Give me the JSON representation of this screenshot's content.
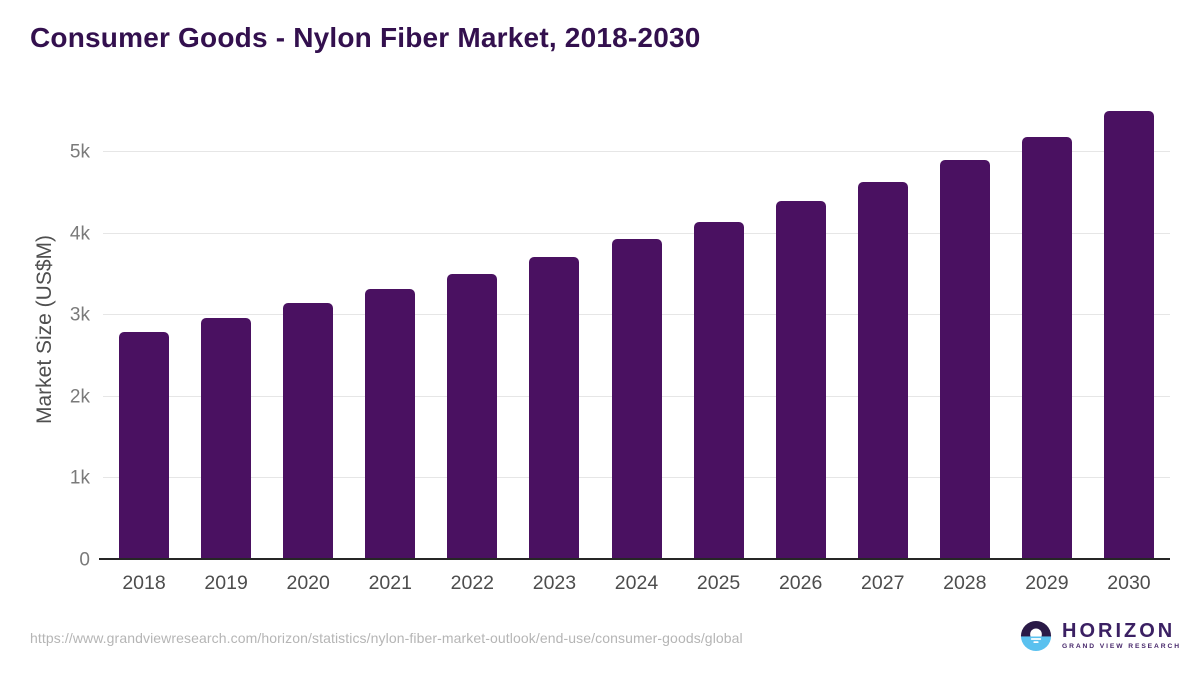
{
  "header": {
    "title": "Consumer Goods - Nylon Fiber Market, 2018-2030"
  },
  "chart_data": {
    "type": "bar",
    "title": "Consumer Goods - Nylon Fiber Market, 2018-2030",
    "xlabel": "",
    "ylabel": "Market Size (US$M)",
    "categories": [
      "2018",
      "2019",
      "2020",
      "2021",
      "2022",
      "2023",
      "2024",
      "2025",
      "2026",
      "2027",
      "2028",
      "2029",
      "2030"
    ],
    "values": [
      2800,
      2970,
      3150,
      3320,
      3510,
      3720,
      3930,
      4140,
      4400,
      4640,
      4910,
      5190,
      5500
    ],
    "series_name": "Market Size (US$M)",
    "ylim": [
      0,
      5640
    ],
    "yticks": [
      {
        "value": 0,
        "label": "0"
      },
      {
        "value": 1000,
        "label": "1k"
      },
      {
        "value": 2000,
        "label": "2k"
      },
      {
        "value": 3000,
        "label": "3k"
      },
      {
        "value": 4000,
        "label": "4k"
      },
      {
        "value": 5000,
        "label": "5k"
      }
    ],
    "bar_color": "#4a1161",
    "grid": "horizontal-only",
    "legend": "none"
  },
  "footer": {
    "source_url": "https://www.grandviewresearch.com/horizon/statistics/nylon-fiber-market-outlook/end-use/consumer-goods/global",
    "logo": {
      "title": "HORIZON",
      "subtitle": "GRAND VIEW RESEARCH"
    }
  },
  "colors": {
    "title_text": "#33104e",
    "bar": "#4a1161",
    "gridline": "#e6e6e6",
    "axis_line": "#262626",
    "y_tick_label": "#7a7a7a",
    "x_tick_label": "#4d4d4d",
    "axis_title": "#4f4f4f",
    "source_url": "#b5b5b5",
    "logo_dark": "#2a1a47",
    "logo_blue": "#5ac1ef",
    "logo_text": "#3b2063"
  }
}
